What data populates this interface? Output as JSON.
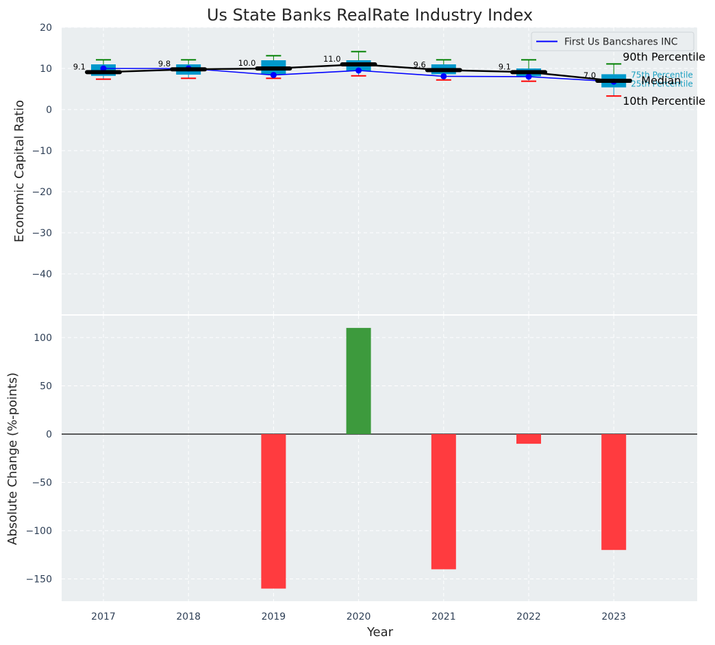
{
  "chart_data": [
    {
      "type": "box",
      "title": "Us State Banks RealRate Industry Index",
      "ylabel": "Economic Capital Ratio",
      "ylim": [
        -50,
        20
      ],
      "yticks": [
        20,
        10,
        0,
        -10,
        -20,
        -30,
        -40
      ],
      "grid": true,
      "categories": [
        "2017",
        "2018",
        "2019",
        "2020",
        "2021",
        "2022",
        "2023"
      ],
      "percentiles": {
        "p10": [
          7.4,
          7.6,
          7.6,
          8.2,
          7.2,
          6.9,
          3.3
        ],
        "p25": [
          8.2,
          8.5,
          8.6,
          9.4,
          8.6,
          8.1,
          5.4
        ],
        "median": [
          9.1,
          9.8,
          10.0,
          11.0,
          9.6,
          9.1,
          7.0
        ],
        "p75": [
          11.0,
          11.0,
          12.0,
          12.0,
          11.0,
          10.0,
          8.6
        ],
        "p90": [
          12.1,
          12.1,
          13.1,
          14.1,
          12.1,
          12.1,
          11.1
        ]
      },
      "median_labels": [
        "9.1",
        "9.8",
        "10.0",
        "11.0",
        "9.6",
        "9.1",
        "7.0"
      ],
      "series": [
        {
          "name": "First Us Bancshares INC",
          "color": "#0000ff",
          "values": [
            10.0,
            10.0,
            8.4,
            9.5,
            8.1,
            8.0,
            6.8
          ]
        }
      ],
      "legend": {
        "position": "top-right",
        "entries": [
          "First Us Bancshares INC"
        ]
      },
      "annotations": {
        "p90": "90th Percentile",
        "p75": "75th Percentile",
        "median": "Median",
        "p25": "25th Percentile",
        "p10": "10th Percentile"
      },
      "colors": {
        "box": "#0099cc",
        "whisker_top": "#008000",
        "whisker_bottom": "#ff0000",
        "median_line": "#000000",
        "background": "#eaeef0"
      }
    },
    {
      "type": "bar",
      "ylabel": "Absolute Change (%-points)",
      "xlabel": "Year",
      "ylim": [
        -173,
        125
      ],
      "yticks": [
        100,
        50,
        0,
        -50,
        -100,
        -150
      ],
      "grid": true,
      "categories": [
        "2017",
        "2018",
        "2019",
        "2020",
        "2021",
        "2022",
        "2023"
      ],
      "values": [
        0,
        0,
        -160,
        110,
        -140,
        -10,
        -120
      ],
      "colors": {
        "positive": "#3d9a3d",
        "negative": "#ff3b3f"
      }
    }
  ]
}
